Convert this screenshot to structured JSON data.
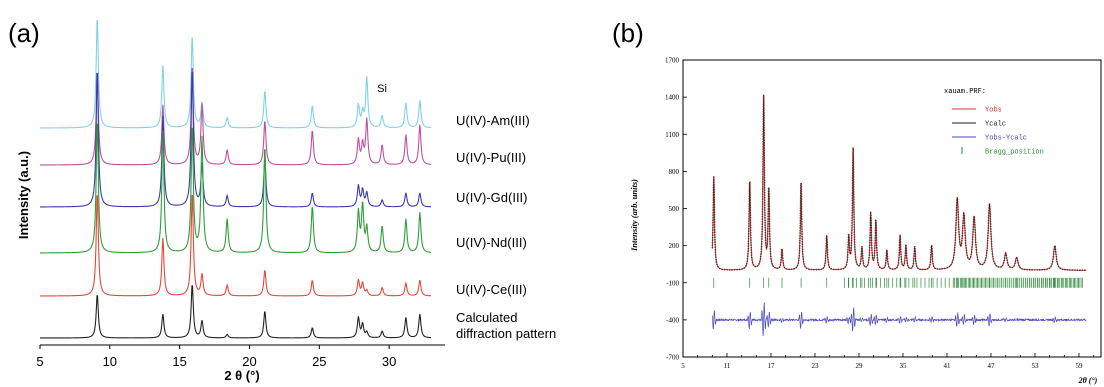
{
  "panels": {
    "a_label": "(a)",
    "b_label": "(b)"
  },
  "chart_data": [
    {
      "type": "line",
      "panel": "(a)",
      "xlabel": "2 θ (°)",
      "ylabel": "Intensity (a.u.)",
      "xlim": [
        5,
        34
      ],
      "xticks": [
        5,
        10,
        15,
        20,
        25,
        30
      ],
      "annotations": [
        {
          "text": "Si",
          "x": 28.4
        }
      ],
      "peaks": [
        9.1,
        13.8,
        15.9,
        16.6,
        18.4,
        21.1,
        24.5,
        27.8,
        28.1,
        28.4,
        29.5,
        31.2,
        32.2
      ],
      "series": [
        {
          "name": "U(IV)-Am(III)",
          "color": "#7fd3e6",
          "values": [
            0.9,
            0.5,
            0.75,
            0.2,
            0.08,
            0.3,
            0.18,
            0.18,
            0.12,
            0.4,
            0.1,
            0.2,
            0.22
          ]
        },
        {
          "name": "U(IV)-Pu(III)",
          "color": "#c0509e",
          "values": [
            0.95,
            0.6,
            1.0,
            0.6,
            0.15,
            0.45,
            0.35,
            0.25,
            0.2,
            0.45,
            0.2,
            0.3,
            0.4
          ]
        },
        {
          "name": "U(IV)-Gd(III)",
          "color": "#3a3aa8",
          "values": [
            1.0,
            0.65,
            1.0,
            0.3,
            0.08,
            0.35,
            0.1,
            0.15,
            0.12,
            0.1,
            0.05,
            0.1,
            0.1
          ]
        },
        {
          "name": "U(IV)-Nd(III)",
          "color": "#2e9e3a",
          "values": [
            1.0,
            0.9,
            0.95,
            0.85,
            0.25,
            0.8,
            0.35,
            0.3,
            0.35,
            0.18,
            0.2,
            0.25,
            0.3
          ]
        },
        {
          "name": "U(IV)-Ce(III)",
          "color": "#e2483a",
          "values": [
            1.0,
            0.55,
            1.0,
            0.2,
            0.1,
            0.25,
            0.15,
            0.15,
            0.12,
            0.05,
            0.08,
            0.12,
            0.15
          ]
        },
        {
          "name": "Calculated diffraction pattern",
          "color": "#222222",
          "values": [
            0.65,
            0.35,
            0.8,
            0.25,
            0.05,
            0.4,
            0.15,
            0.3,
            0.2,
            0.08,
            0.1,
            0.3,
            0.35
          ]
        }
      ],
      "label_lines": {
        "am": "U(IV)-Am(III)",
        "pu": "U(IV)-Pu(III)",
        "gd": "U(IV)-Gd(III)",
        "nd": "U(IV)-Nd(III)",
        "ce": "U(IV)-Ce(III)",
        "calc1": "Calculated",
        "calc2": "diffraction pattern"
      }
    },
    {
      "type": "line",
      "panel": "(b)",
      "xlabel": "2θ (°)",
      "ylabel": "Intensity (arb. units)",
      "xlim": [
        5,
        62
      ],
      "ylim": [
        -700,
        1700
      ],
      "xticks": [
        5,
        9,
        13,
        17,
        21,
        25,
        29,
        33,
        37,
        41,
        45,
        49,
        53,
        57,
        61
      ],
      "xtick_labels_shown": [
        5,
        11,
        17,
        23,
        29,
        35,
        41,
        47,
        53,
        59
      ],
      "yticks": [
        -700,
        -400,
        -100,
        200,
        500,
        800,
        1100,
        1400,
        1700
      ],
      "legend": {
        "title": "xauam.PRF:",
        "placement": "top-right",
        "entries": [
          {
            "name": "Yobs",
            "color": "#d83030"
          },
          {
            "name": "Ycalc",
            "color": "#222222"
          },
          {
            "name": "Yobs-Ycalc",
            "color": "#4a4ab8"
          },
          {
            "name": "Bragg_position",
            "color": "#2e8b3a"
          }
        ]
      },
      "peaks": [
        {
          "x": 9.2,
          "y": 760
        },
        {
          "x": 14.1,
          "y": 730
        },
        {
          "x": 16.0,
          "y": 1400
        },
        {
          "x": 16.7,
          "y": 650
        },
        {
          "x": 18.5,
          "y": 170
        },
        {
          "x": 21.1,
          "y": 720
        },
        {
          "x": 24.6,
          "y": 280
        },
        {
          "x": 27.6,
          "y": 260
        },
        {
          "x": 28.2,
          "y": 980
        },
        {
          "x": 29.4,
          "y": 180
        },
        {
          "x": 30.6,
          "y": 460
        },
        {
          "x": 31.3,
          "y": 400
        },
        {
          "x": 32.8,
          "y": 160
        },
        {
          "x": 34.6,
          "y": 280
        },
        {
          "x": 35.4,
          "y": 200
        },
        {
          "x": 36.6,
          "y": 190
        },
        {
          "x": 38.9,
          "y": 200
        },
        {
          "x": 42.4,
          "y": 560
        },
        {
          "x": 43.3,
          "y": 420
        },
        {
          "x": 44.7,
          "y": 420
        },
        {
          "x": 46.8,
          "y": 530
        },
        {
          "x": 49.0,
          "y": 130
        },
        {
          "x": 50.5,
          "y": 100
        },
        {
          "x": 55.7,
          "y": 200
        }
      ],
      "background": 0,
      "bragg_level": -100,
      "diff_level": -400
    }
  ]
}
